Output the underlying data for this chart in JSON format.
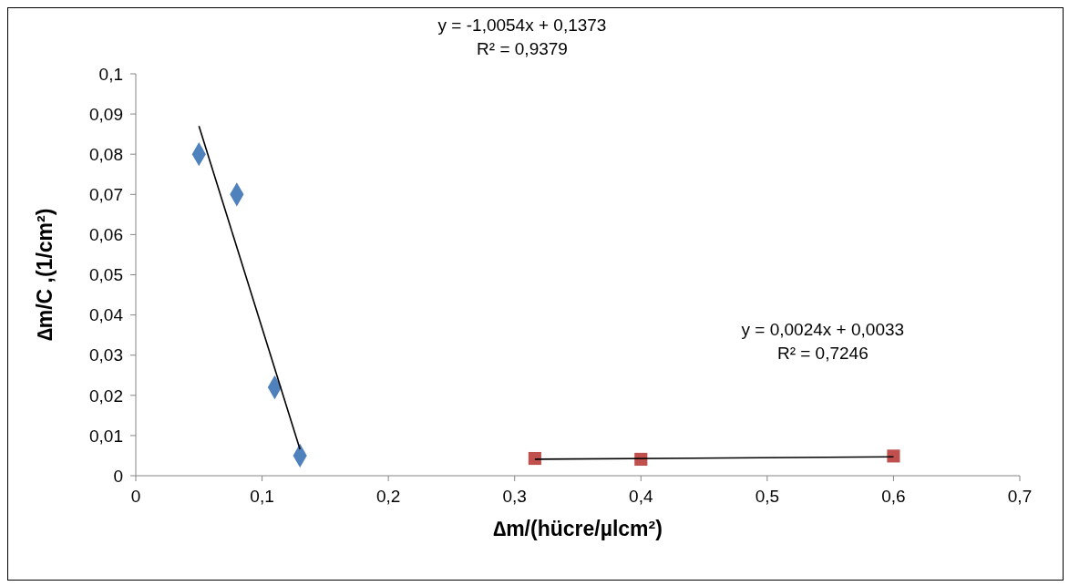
{
  "chart_data": {
    "type": "scatter",
    "xlabel": "∆m/(hücre/µlcm²)",
    "ylabel": "∆m/C ,(1/cm²)",
    "xlim": [
      0,
      0.7
    ],
    "ylim": [
      0,
      0.1
    ],
    "xticks": [
      0,
      {
        "value": 0.1,
        "label": "0,1"
      },
      {
        "value": 0.2,
        "label": "0,2"
      },
      {
        "value": 0.3,
        "label": "0,3"
      },
      {
        "value": 0.4,
        "label": "0,4"
      },
      {
        "value": 0.5,
        "label": "0,5"
      },
      {
        "value": 0.6,
        "label": "0,6"
      },
      {
        "value": 0.7,
        "label": "0,7"
      }
    ],
    "yticks": [
      0,
      {
        "value": 0.01,
        "label": "0,01"
      },
      {
        "value": 0.02,
        "label": "0,02"
      },
      {
        "value": 0.03,
        "label": "0,03"
      },
      {
        "value": 0.04,
        "label": "0,04"
      },
      {
        "value": 0.05,
        "label": "0,05"
      },
      {
        "value": 0.06,
        "label": "0,06"
      },
      {
        "value": 0.07,
        "label": "0,07"
      },
      {
        "value": 0.08,
        "label": "0,08"
      },
      {
        "value": 0.09,
        "label": "0,09"
      },
      {
        "value": 0.1,
        "label": "0,1"
      }
    ],
    "grid": false,
    "legend": false,
    "series": [
      {
        "color": "#4f81bd",
        "marker": "diamond",
        "x": [
          0.05,
          0.08,
          0.11,
          0.13
        ],
        "values": [
          0.08,
          0.07,
          0.022,
          0.005
        ]
      },
      {
        "color": "#c0504d",
        "marker": "square",
        "x": [
          0.316,
          0.4,
          0.6
        ],
        "values": [
          0.0043,
          0.0041,
          0.0049
        ]
      },
      {
        "type": "line",
        "color": "#000000",
        "marker": "none",
        "x": [
          0.05,
          0.13
        ],
        "values": [
          0.087,
          0.0066
        ]
      },
      {
        "type": "line",
        "color": "#000000",
        "marker": "none",
        "x": [
          0.316,
          0.6
        ],
        "values": [
          0.0041,
          0.0047
        ]
      }
    ],
    "annotations": [
      "y = -1,0054x + 0,1373",
      "R² = 0,9379",
      "y = 0,0024x + 0,0033",
      "R² = 0,7246"
    ]
  }
}
